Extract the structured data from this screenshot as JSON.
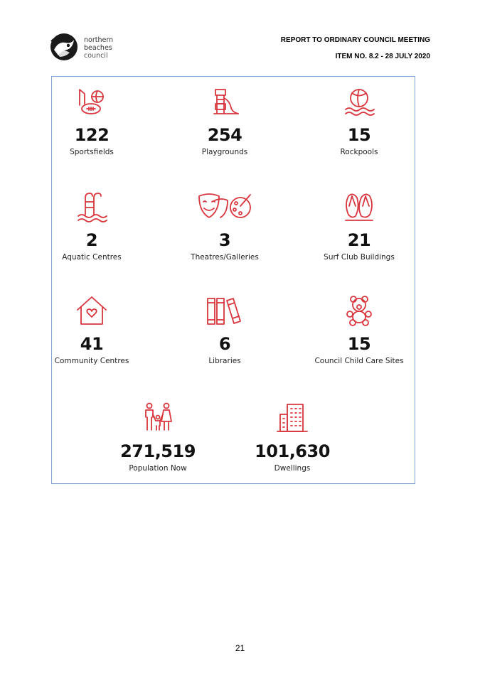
{
  "header": {
    "logo_lines": [
      "northern",
      "beaches",
      "council"
    ],
    "report_title": "REPORT TO ORDINARY COUNCIL MEETING",
    "item": "ITEM NO. 8.2 - 28 JULY 2020"
  },
  "stats": [
    {
      "value": "122",
      "label": "Sportsfields",
      "icon": "sportsfields-icon"
    },
    {
      "value": "254",
      "label": "Playgrounds",
      "icon": "playground-icon"
    },
    {
      "value": "15",
      "label": "Rockpools",
      "icon": "rockpool-icon"
    },
    {
      "value": "2",
      "label": "Aquatic Centres",
      "icon": "pool-ladder-icon"
    },
    {
      "value": "3",
      "label": "Theatres/Galleries",
      "icon": "theatre-masks-icon"
    },
    {
      "value": "21",
      "label": "Surf Club Buildings",
      "icon": "thongs-icon"
    },
    {
      "value": "41",
      "label": "Community Centres",
      "icon": "house-heart-icon"
    },
    {
      "value": "6",
      "label": "Libraries",
      "icon": "books-icon"
    },
    {
      "value": "15",
      "label": "Council Child Care Sites",
      "icon": "teddy-bear-icon"
    },
    {
      "value": "271,519",
      "label": "Population Now",
      "icon": "family-icon"
    },
    {
      "value": "101,630",
      "label": "Dwellings",
      "icon": "apartment-building-icon"
    }
  ],
  "footer": {
    "page_number": "21"
  },
  "colors": {
    "icon": "#d9363e",
    "border": "#7ea6d8"
  }
}
